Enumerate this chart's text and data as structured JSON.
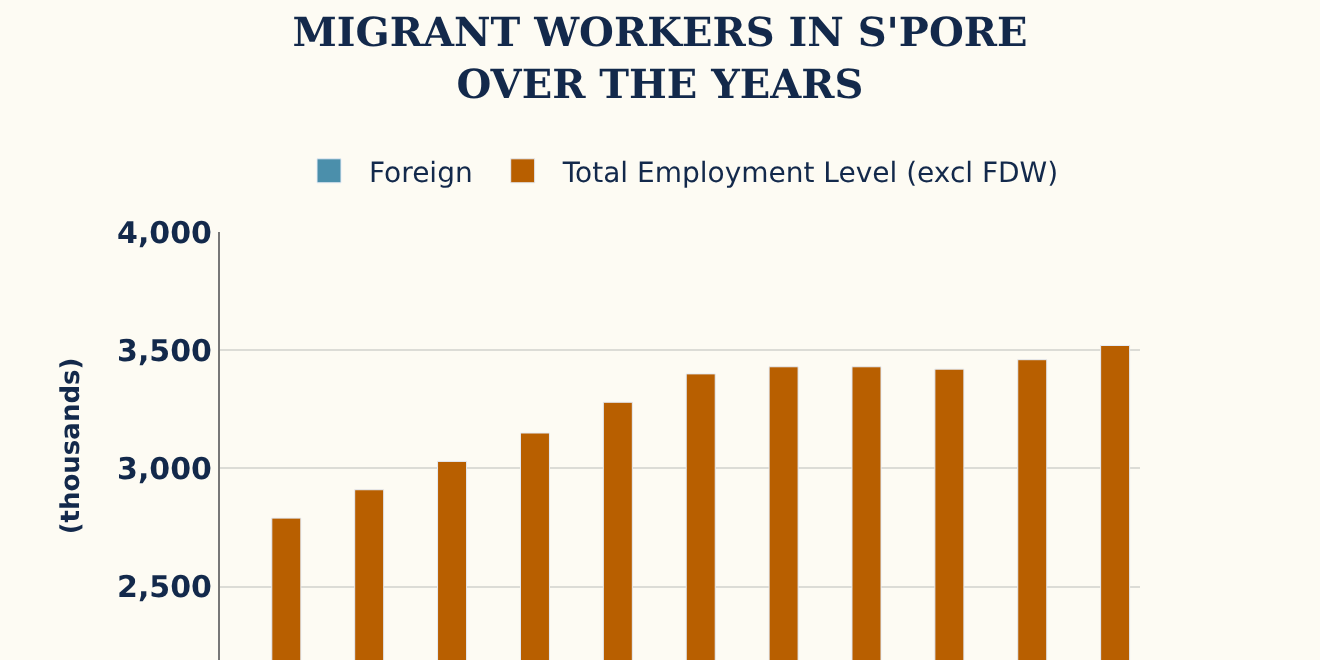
{
  "chart_data": {
    "type": "bar",
    "title": "MIGRANT WORKERS IN S'PORE\nOVER THE YEARS",
    "ylabel": "(thousands)",
    "categories": [
      null,
      null,
      null,
      null,
      null,
      null,
      null,
      null,
      null,
      null,
      null
    ],
    "series": [
      {
        "name": "Foreign",
        "color": "#4b8fab",
        "values": [
          null,
          null,
          null,
          null,
          null,
          null,
          null,
          null,
          null,
          null,
          null
        ]
      },
      {
        "name": "Total Employment Level (excl FDW)",
        "color": "#b85f00",
        "values": [
          2790,
          2910,
          3030,
          3150,
          3280,
          3400,
          3430,
          3430,
          3420,
          3460,
          3520
        ]
      }
    ],
    "ylim": [
      2190,
      4000
    ],
    "yticks": [
      {
        "value": 2500,
        "label": "2,500"
      },
      {
        "value": 3000,
        "label": "3,000"
      },
      {
        "value": 3500,
        "label": "3,500"
      },
      {
        "value": 4000,
        "label": "4,000"
      }
    ],
    "grid": "y",
    "legend": "top",
    "tick_labels": "y"
  }
}
